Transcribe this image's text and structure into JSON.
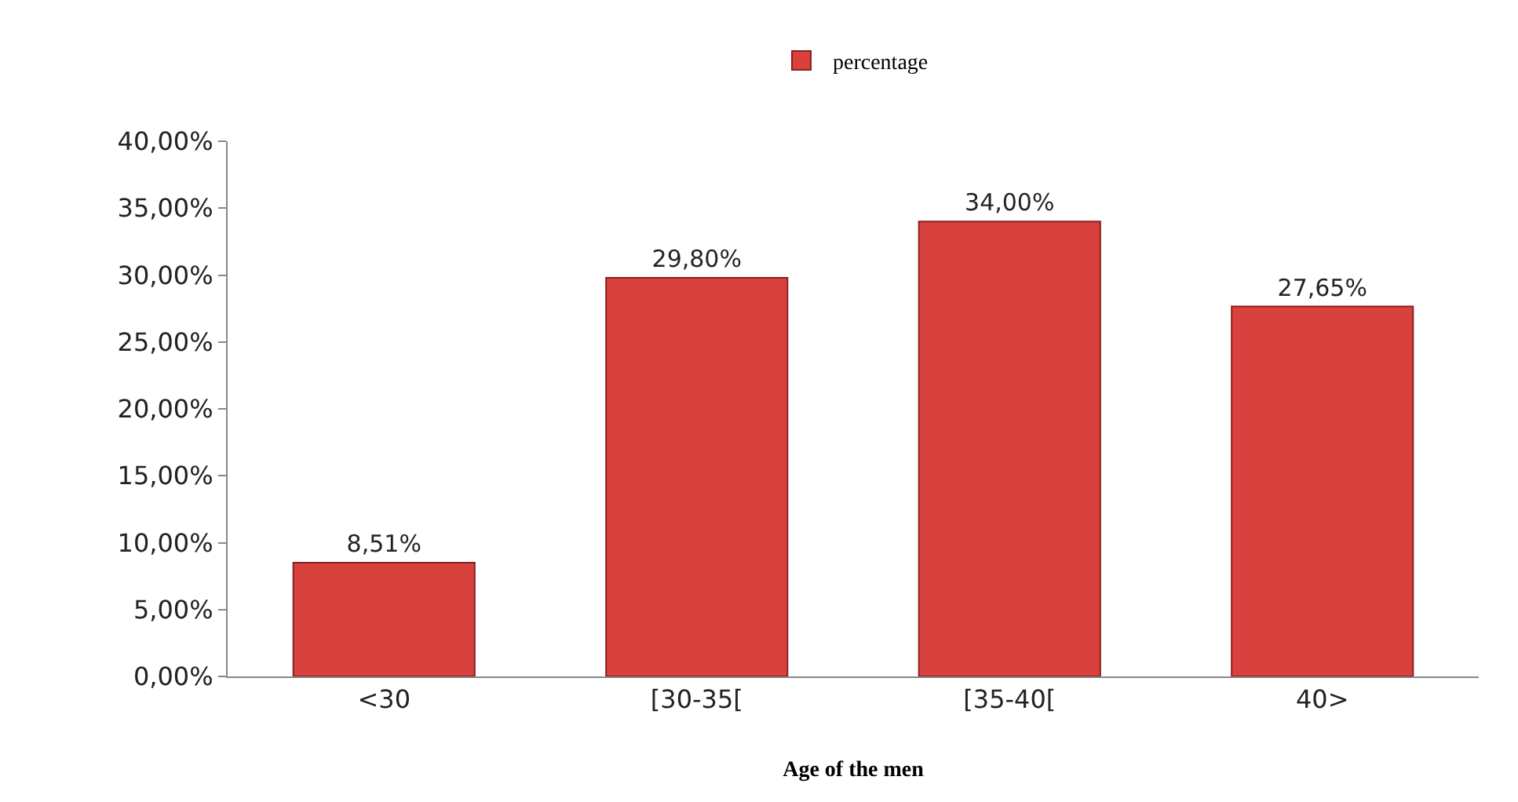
{
  "chart_data": {
    "type": "bar",
    "xlabel": "Age of the men",
    "categories": [
      "<30",
      "[30-35[",
      "[35-40[",
      "40>"
    ],
    "series": [
      {
        "name": "percentage",
        "color": "#d8413d",
        "values": [
          8.51,
          29.8,
          34.0,
          27.65
        ],
        "value_labels": [
          "8,51%",
          "29,80%",
          "34,00%",
          "27,65%"
        ]
      }
    ],
    "ylim": [
      0,
      40
    ],
    "yticks": [
      {
        "value": 0,
        "label": "0,00%"
      },
      {
        "value": 5,
        "label": "5,00%"
      },
      {
        "value": 10,
        "label": "10,00%"
      },
      {
        "value": 15,
        "label": "15,00%"
      },
      {
        "value": 20,
        "label": "20,00%"
      },
      {
        "value": 25,
        "label": "25,00%"
      },
      {
        "value": 30,
        "label": "30,00%"
      },
      {
        "value": 35,
        "label": "35,00%"
      },
      {
        "value": 40,
        "label": "40,00%"
      }
    ],
    "legend": "top"
  }
}
